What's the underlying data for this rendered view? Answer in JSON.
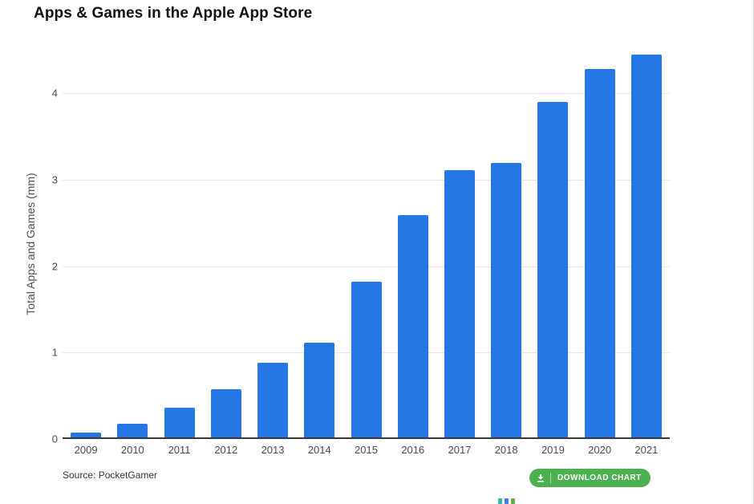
{
  "header": {
    "title": "Apps & Games in the Apple App Store"
  },
  "footer": {
    "source": "Source: PocketGamer",
    "download_button_label": "DOWNLOAD CHART",
    "download_button_color": "#4caf50",
    "partial_logo_colors": [
      "#2cb9b0",
      "#3e7de0",
      "#62b146"
    ]
  },
  "chart_data": {
    "type": "bar",
    "title": "Apps & Games in the Apple App Store",
    "categories": [
      "2009",
      "2010",
      "2011",
      "2012",
      "2013",
      "2014",
      "2015",
      "2016",
      "2017",
      "2018",
      "2019",
      "2020",
      "2021"
    ],
    "values": [
      0.06,
      0.16,
      0.34,
      0.56,
      0.86,
      1.1,
      1.8,
      2.57,
      3.09,
      3.18,
      3.88,
      4.26,
      4.43
    ],
    "xlabel": "",
    "ylabel": "Total Apps and Games (mm)",
    "ylim": [
      0,
      4.55
    ],
    "yticks": [
      0,
      1,
      2,
      3,
      4
    ],
    "bar_color": "#2577e6",
    "grid": true,
    "legend": false,
    "source": "Source: PocketGamer"
  }
}
